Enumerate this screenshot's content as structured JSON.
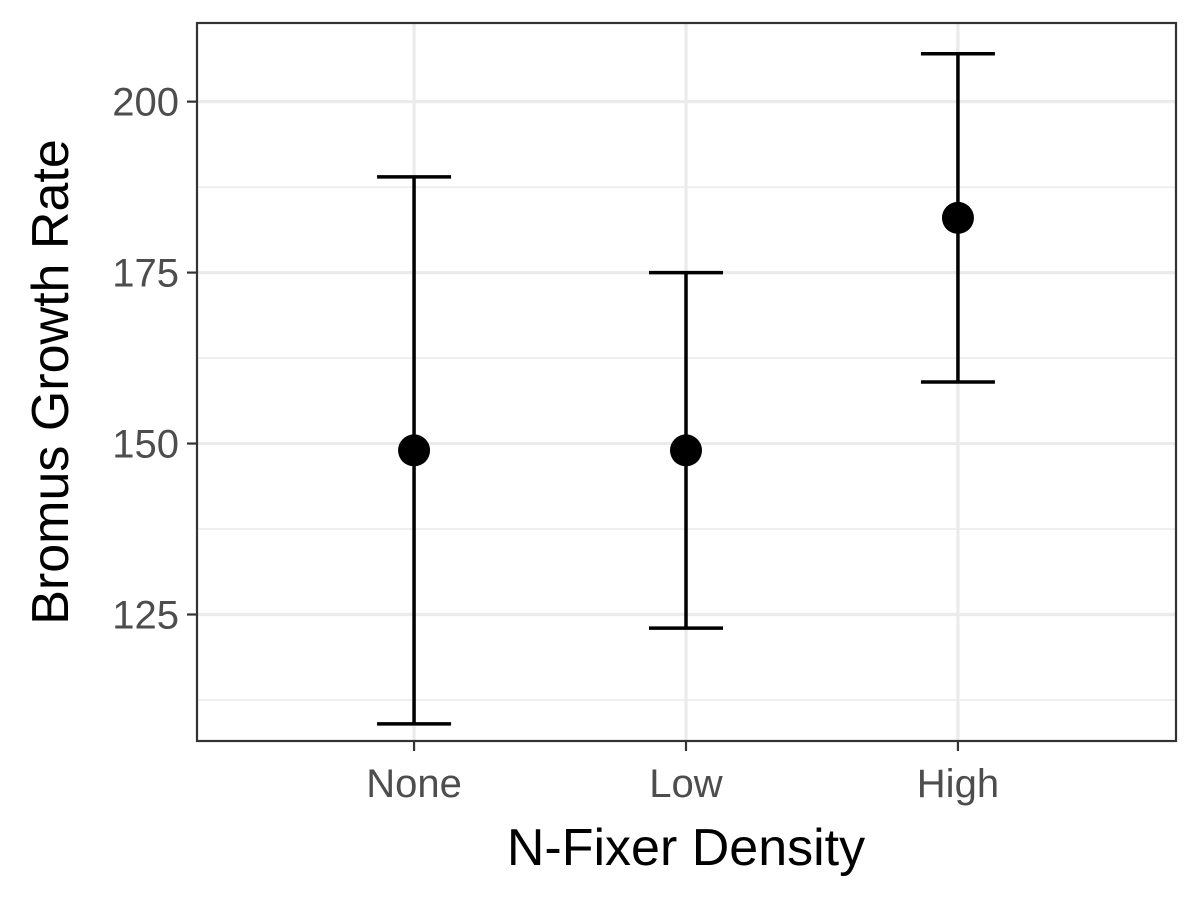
{
  "chart_data": {
    "type": "scatter",
    "title": "",
    "xlabel": "N-Fixer Density",
    "ylabel": "Bromus Growth Rate",
    "categories": [
      "None",
      "Low",
      "High"
    ],
    "points": [
      {
        "category": "None",
        "mean": 149,
        "lower": 109,
        "upper": 189
      },
      {
        "category": "Low",
        "mean": 149,
        "lower": 123,
        "upper": 175
      },
      {
        "category": "High",
        "mean": 183,
        "lower": 159,
        "upper": 207
      }
    ],
    "ylim": [
      106.5,
      211.5
    ],
    "yticks": [
      125,
      150,
      175,
      200
    ],
    "y_minor_ticks": [
      112.5,
      137.5,
      162.5,
      187.5
    ],
    "grid": true,
    "theme": "bw",
    "colors": {
      "points": "#000000",
      "grid": "#ebebeb",
      "border": "#333333",
      "tick_text": "#4d4d4d"
    }
  }
}
